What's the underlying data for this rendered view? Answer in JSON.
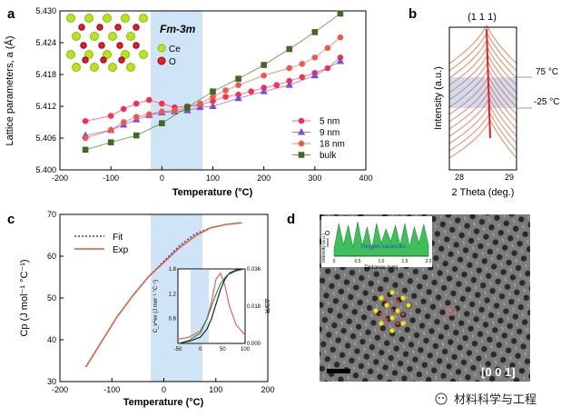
{
  "panels": {
    "a": "a",
    "b": "b",
    "c": "c",
    "d": "d"
  },
  "watermark": "材料科学与工程",
  "chart_data": [
    {
      "panel": "a",
      "type": "scatter",
      "title": "",
      "inset_label": "Fm-3m",
      "inset_legend": [
        "Ce",
        "O"
      ],
      "xlabel": "Temperature (°C)",
      "ylabel": "Lattice parameters, a (Å)",
      "xlim": [
        -200,
        400
      ],
      "ylim": [
        5.4,
        5.43
      ],
      "xticks": [
        "-200",
        "-100",
        "0",
        "100",
        "200",
        "300",
        "400"
      ],
      "yticks": [
        "5.400",
        "5.406",
        "5.412",
        "5.418",
        "5.424",
        "5.430"
      ],
      "highlight_band": [
        -25,
        75
      ],
      "legend_position": "lower-right",
      "series": [
        {
          "name": "5 nm",
          "color": "#ff2d4d",
          "marker": "circle",
          "x": [
            -150,
            -100,
            -75,
            -50,
            -25,
            0,
            25,
            50,
            75,
            100,
            125,
            150,
            175,
            200,
            225,
            250,
            275,
            300,
            325,
            350
          ],
          "y": [
            5.4092,
            5.4102,
            5.4115,
            5.4125,
            5.4132,
            5.4125,
            5.4118,
            5.412,
            5.4122,
            5.413,
            5.4138,
            5.4142,
            5.4148,
            5.4155,
            5.416,
            5.4168,
            5.4175,
            5.4183,
            5.4192,
            5.4212
          ]
        },
        {
          "name": "9 nm",
          "color": "#7a4fd1",
          "marker": "triangle",
          "x": [
            -150,
            -100,
            -75,
            -50,
            -25,
            0,
            25,
            50,
            75,
            100,
            150,
            200,
            250,
            300,
            350
          ],
          "y": [
            5.4065,
            5.4075,
            5.4085,
            5.4095,
            5.4103,
            5.4108,
            5.411,
            5.4112,
            5.4118,
            5.412,
            5.4135,
            5.4148,
            5.416,
            5.4178,
            5.4205
          ]
        },
        {
          "name": "18 nm",
          "color": "#f0564a",
          "marker": "hexagon",
          "x": [
            -150,
            -100,
            -75,
            -50,
            -25,
            0,
            25,
            50,
            75,
            100,
            125,
            150,
            200,
            250,
            275,
            300,
            325,
            350
          ],
          "y": [
            5.406,
            5.4075,
            5.409,
            5.41,
            5.4105,
            5.411,
            5.4112,
            5.4118,
            5.4125,
            5.4138,
            5.415,
            5.416,
            5.4178,
            5.4192,
            5.42,
            5.4212,
            5.423,
            5.425
          ]
        },
        {
          "name": "bulk",
          "color": "#3f6a22",
          "marker": "square",
          "x": [
            -150,
            -100,
            -50,
            0,
            50,
            100,
            150,
            200,
            250,
            300,
            350
          ],
          "y": [
            5.4038,
            5.4052,
            5.4065,
            5.4088,
            5.4118,
            5.4148,
            5.4172,
            5.4198,
            5.4228,
            5.426,
            5.4295
          ]
        }
      ]
    },
    {
      "panel": "b",
      "type": "line",
      "title": "(1 1 1)",
      "xlabel": "2 Theta (deg.)",
      "ylabel": "Intensity (a.u.)",
      "xlim": [
        27.7,
        29.5
      ],
      "xticks": [
        "28",
        "29"
      ],
      "peak_position": 28.55,
      "annotations": [
        "75 °C",
        "-25 °C"
      ],
      "highlight_band": [
        -25,
        75
      ]
    },
    {
      "panel": "c",
      "type": "line",
      "title": "",
      "xlabel": "Temperature (°C)",
      "ylabel": "Cp (J mol⁻¹ °C⁻¹)",
      "xlim": [
        -200,
        200
      ],
      "ylim": [
        30,
        70
      ],
      "xticks": [
        "-200",
        "-100",
        "0",
        "100",
        "200"
      ],
      "yticks": [
        "30",
        "40",
        "50",
        "60",
        "70"
      ],
      "highlight_band": [
        -25,
        75
      ],
      "legend_position": "top-left",
      "series": [
        {
          "name": "Fit",
          "color": "#3a3aa8",
          "style": "dotted",
          "x": [
            -150,
            -120,
            -90,
            -60,
            -30,
            0,
            30,
            60,
            90,
            120,
            150
          ],
          "y": [
            33.5,
            39.5,
            45.5,
            50.5,
            55.0,
            58.8,
            62.5,
            65.3,
            66.8,
            67.6,
            68.0
          ]
        },
        {
          "name": "Exp",
          "color": "#e4562f",
          "style": "solid",
          "x": [
            -150,
            -120,
            -90,
            -60,
            -30,
            0,
            30,
            60,
            90,
            120,
            150
          ],
          "y": [
            33.5,
            39.5,
            45.5,
            50.5,
            55.0,
            58.5,
            62.0,
            64.8,
            66.8,
            67.6,
            68.0
          ]
        }
      ],
      "inset": {
        "xlim": [
          -50,
          100
        ],
        "xticks": [
          "-50",
          "0",
          "50",
          "100"
        ],
        "ylim_left": [
          0,
          1.8
        ],
        "yticks_left": [
          "0.6",
          "1.2",
          "1.8"
        ],
        "ylabel_left": "C_v^ex (J mol⁻¹ °C⁻¹)",
        "ylim_right": [
          0,
          0.036
        ],
        "yticks_right": [
          "0.000",
          "0.018",
          "0.036"
        ],
        "ylabel_right": "ΔS/R",
        "series": [
          {
            "color": "#e8506a",
            "x": [
              -50,
              -25,
              0,
              15,
              25,
              35,
              45,
              55,
              65,
              80,
              100
            ],
            "y": [
              0.1,
              0.15,
              0.3,
              0.6,
              1.0,
              1.55,
              1.7,
              1.4,
              0.9,
              0.45,
              0.2
            ]
          },
          {
            "color": "#111111",
            "axis": "right",
            "x": [
              -50,
              -25,
              0,
              15,
              25,
              35,
              45,
              55,
              65,
              80,
              100
            ],
            "y": [
              0.0,
              0.001,
              0.003,
              0.007,
              0.012,
              0.019,
              0.026,
              0.031,
              0.034,
              0.0355,
              0.036
            ]
          },
          {
            "color": "#2f8a3a",
            "axis": "right",
            "x": [
              -50,
              -25,
              0,
              15,
              30,
              45,
              60,
              80,
              100
            ],
            "y": [
              0.0,
              0.0015,
              0.005,
              0.012,
              0.021,
              0.029,
              0.033,
              0.035,
              0.036
            ]
          }
        ]
      }
    }
  ],
  "panel_d": {
    "label": "[0 0 1]",
    "inset_xlabel": "Distance (nm)",
    "inset_ylabel": "Intensity (a.u.)",
    "inset_annotation": "Oxygen vacancies",
    "inset_marker": "O",
    "inset_xticks": [
      "0",
      "0.5",
      "1.0",
      "1.5",
      "2.0"
    ],
    "profile": [
      0.2,
      0.9,
      0.3,
      0.85,
      0.25,
      0.95,
      0.3,
      0.8,
      0.2,
      0.9,
      0.35,
      0.75,
      0.4,
      0.85,
      0.3,
      0.9,
      0.25,
      0.8,
      0.35,
      0.88,
      0.3
    ]
  }
}
